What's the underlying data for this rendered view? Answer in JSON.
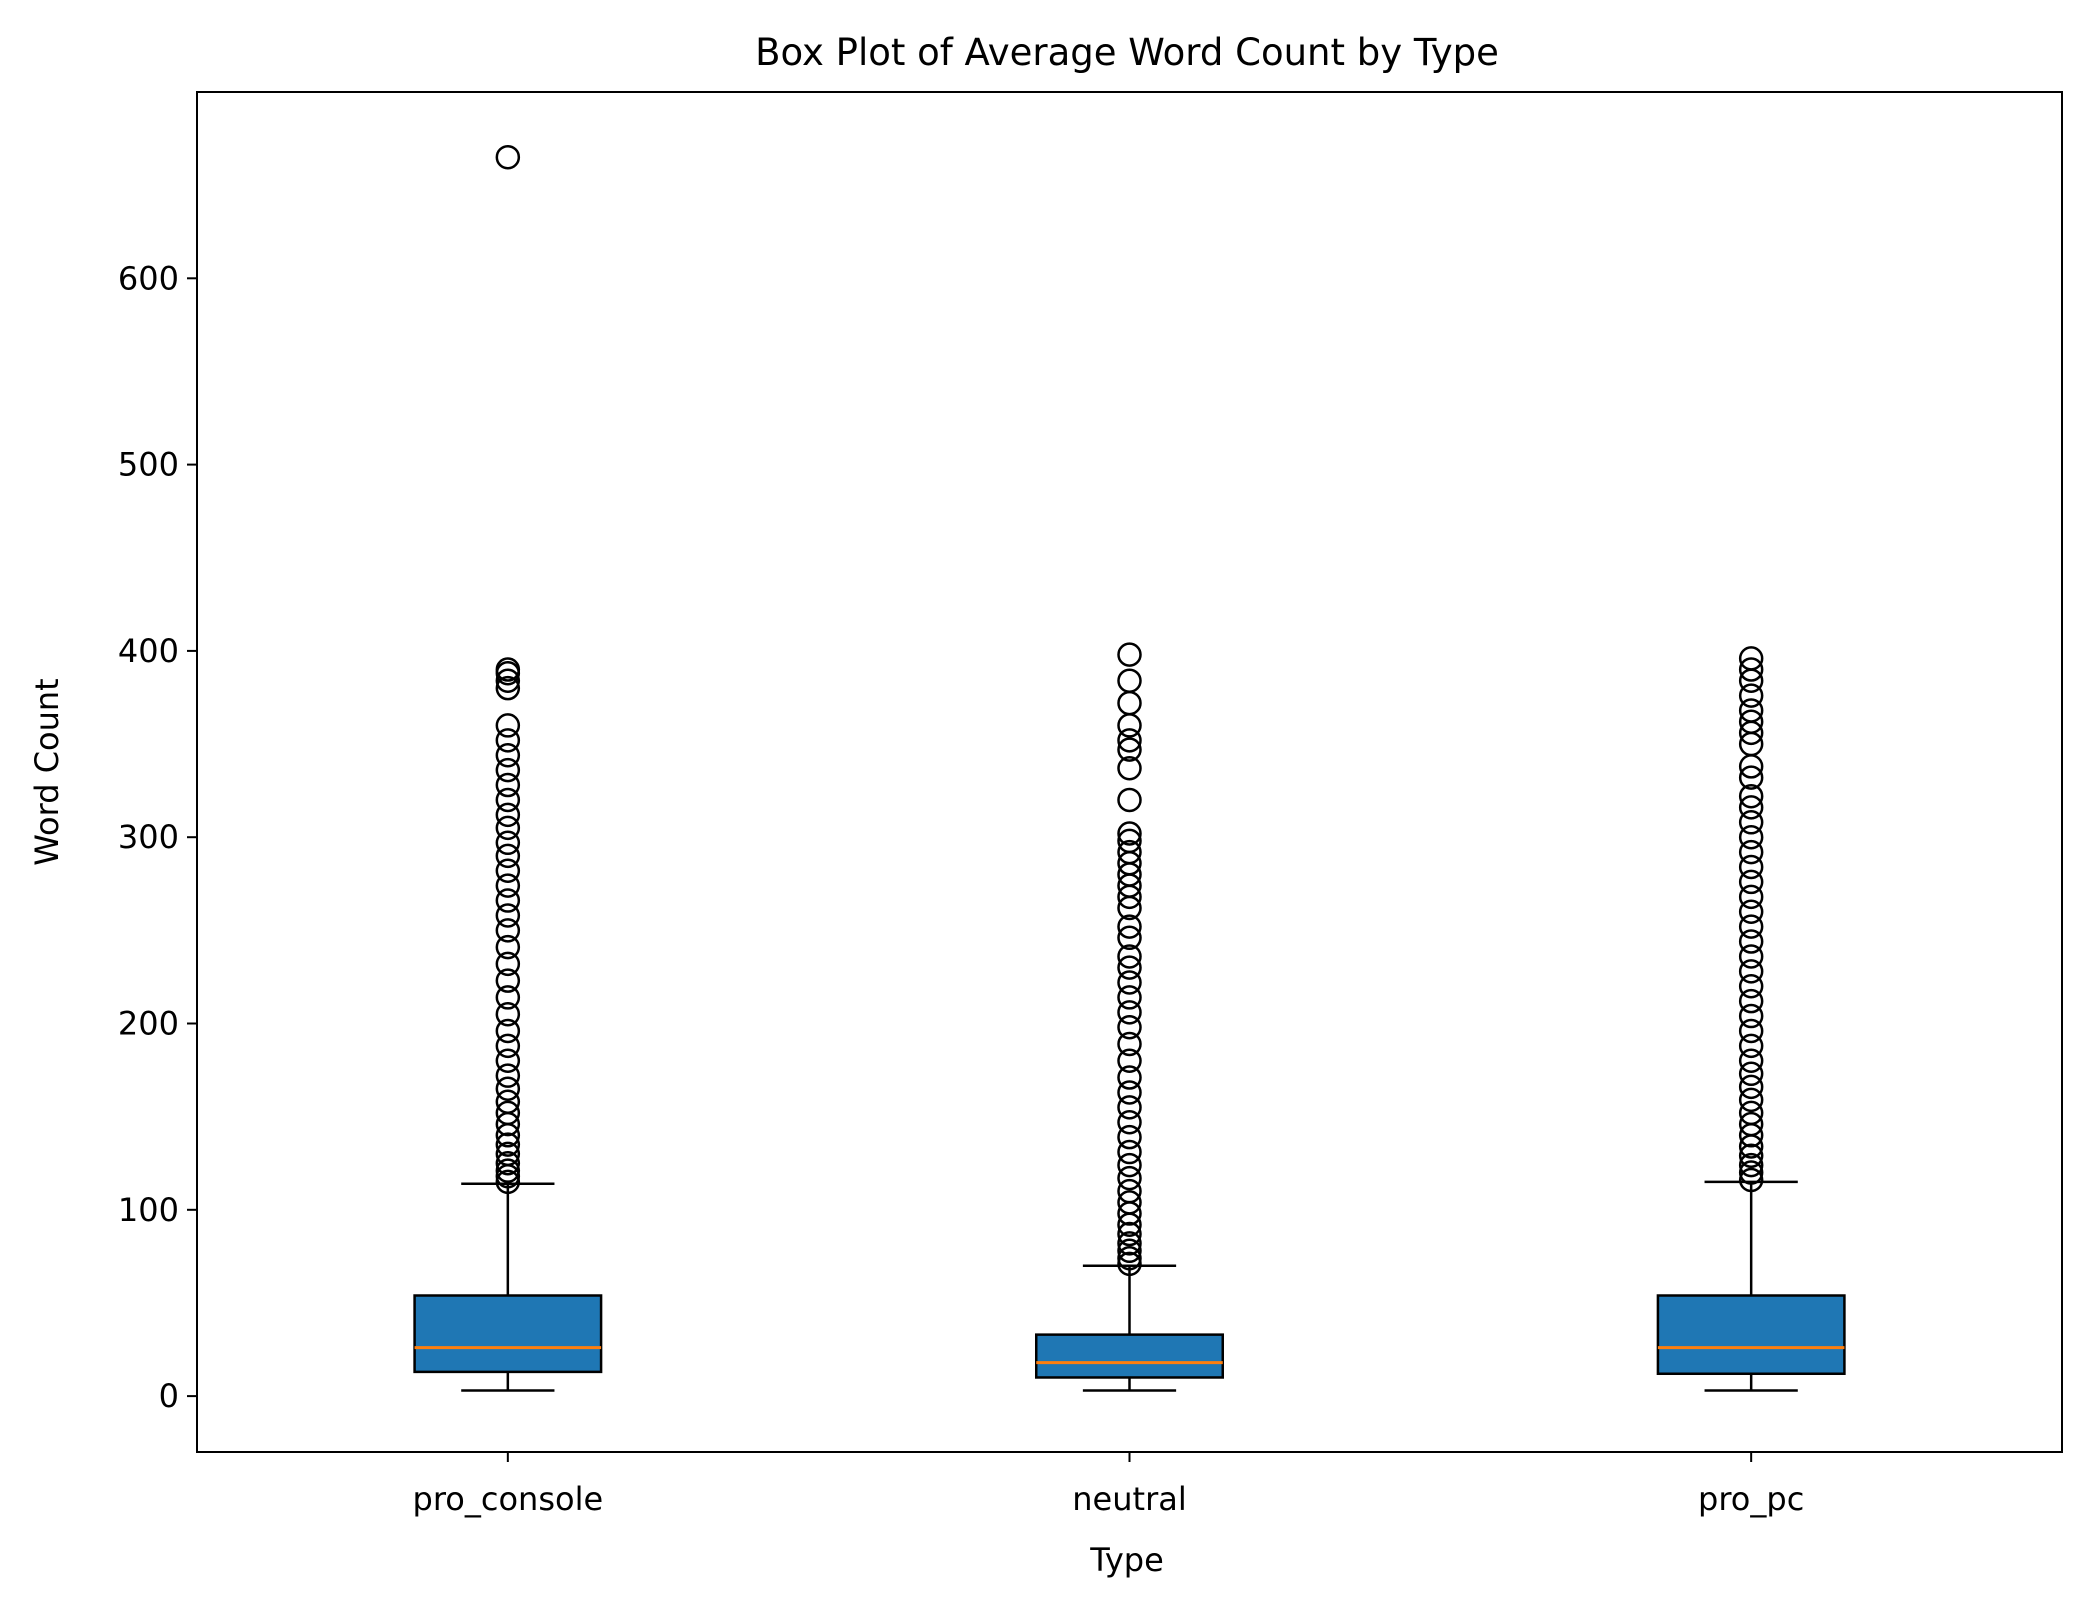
{
  "chart_data": {
    "type": "box",
    "title": "Box Plot of Average Word Count by Type",
    "xlabel": "Type",
    "ylabel": "Word Count",
    "categories": [
      "pro_console",
      "neutral",
      "pro_pc"
    ],
    "ylim": [
      -30,
      700
    ],
    "yticks": [
      0,
      100,
      200,
      300,
      400,
      500,
      600
    ],
    "grid": false,
    "box_color": "#1f77b4",
    "median_color": "#ff7f0e",
    "boxes": [
      {
        "name": "pro_console",
        "whislo": 3,
        "q1": 13,
        "median": 26,
        "q3": 54,
        "whishi": 114,
        "fliers": [
          115,
          118,
          121,
          125,
          130,
          135,
          140,
          146,
          152,
          158,
          165,
          172,
          180,
          188,
          196,
          205,
          214,
          223,
          232,
          241,
          250,
          258,
          266,
          274,
          282,
          290,
          297,
          305,
          312,
          320,
          328,
          336,
          344,
          352,
          360,
          380,
          384,
          388,
          390,
          665
        ]
      },
      {
        "name": "neutral",
        "whislo": 3,
        "q1": 10,
        "median": 18,
        "q3": 33,
        "whishi": 70,
        "fliers": [
          71,
          74,
          78,
          82,
          87,
          92,
          98,
          104,
          110,
          117,
          124,
          131,
          139,
          147,
          155,
          163,
          171,
          180,
          189,
          198,
          206,
          214,
          222,
          230,
          236,
          246,
          252,
          262,
          268,
          274,
          280,
          286,
          292,
          298,
          302,
          320,
          337,
          347,
          352,
          360,
          372,
          384,
          398
        ]
      },
      {
        "name": "pro_pc",
        "whislo": 3,
        "q1": 12,
        "median": 26,
        "q3": 54,
        "whishi": 115,
        "fliers": [
          116,
          120,
          124,
          129,
          134,
          140,
          146,
          152,
          159,
          166,
          173,
          180,
          188,
          196,
          204,
          212,
          220,
          228,
          236,
          244,
          252,
          260,
          268,
          276,
          284,
          292,
          300,
          308,
          316,
          322,
          332,
          338,
          350,
          356,
          362,
          368,
          376,
          384,
          390,
          396
        ]
      }
    ]
  }
}
